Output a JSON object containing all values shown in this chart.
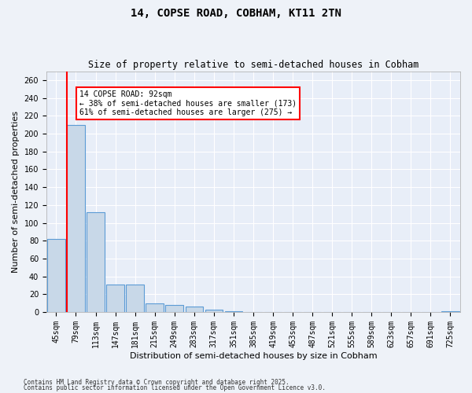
{
  "title": "14, COPSE ROAD, COBHAM, KT11 2TN",
  "subtitle": "Size of property relative to semi-detached houses in Cobham",
  "xlabel": "Distribution of semi-detached houses by size in Cobham",
  "ylabel": "Number of semi-detached properties",
  "bins": [
    "45sqm",
    "79sqm",
    "113sqm",
    "147sqm",
    "181sqm",
    "215sqm",
    "249sqm",
    "283sqm",
    "317sqm",
    "351sqm",
    "385sqm",
    "419sqm",
    "453sqm",
    "487sqm",
    "521sqm",
    "555sqm",
    "589sqm",
    "623sqm",
    "657sqm",
    "691sqm",
    "725sqm"
  ],
  "values": [
    82,
    210,
    112,
    31,
    31,
    10,
    8,
    6,
    3,
    1,
    0,
    0,
    0,
    0,
    0,
    0,
    0,
    0,
    0,
    0,
    1
  ],
  "bar_color": "#c8d8e8",
  "bar_edge_color": "#5b9bd5",
  "red_line_index": 1,
  "annotation_text": "14 COPSE ROAD: 92sqm\n← 38% of semi-detached houses are smaller (173)\n61% of semi-detached houses are larger (275) →",
  "ylim": [
    0,
    270
  ],
  "yticks": [
    0,
    20,
    40,
    60,
    80,
    100,
    120,
    140,
    160,
    180,
    200,
    220,
    240,
    260
  ],
  "background_color": "#e8eef8",
  "grid_color": "#ffffff",
  "fig_background": "#eef2f8",
  "footer_line1": "Contains HM Land Registry data © Crown copyright and database right 2025.",
  "footer_line2": "Contains public sector information licensed under the Open Government Licence v3.0.",
  "title_fontsize": 10,
  "subtitle_fontsize": 8.5,
  "axis_label_fontsize": 8,
  "tick_fontsize": 7
}
